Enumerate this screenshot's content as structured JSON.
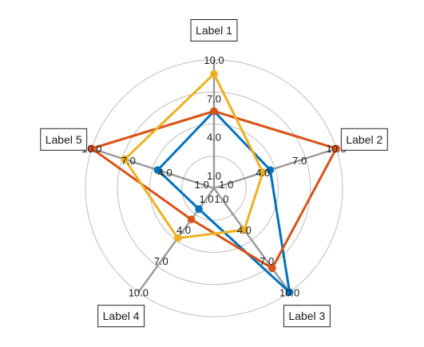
{
  "chart_data": {
    "type": "radar",
    "axes": [
      "Label 1",
      "Label 2",
      "Label 3",
      "Label 4",
      "Label 5"
    ],
    "tick_values": [
      1,
      4,
      7,
      10
    ],
    "tick_labels": [
      "1.0",
      "4.0",
      "7.0",
      "10.0"
    ],
    "range": [
      0,
      10
    ],
    "rings": 4,
    "grid": true,
    "series": [
      {
        "color": "#0072BD",
        "values": [
          6.0,
          4.6,
          10.0,
          2.0,
          4.6
        ]
      },
      {
        "color": "#D95319",
        "values": [
          6.0,
          10.0,
          7.7,
          3.0,
          10.0
        ]
      },
      {
        "color": "#EDB120",
        "values": [
          8.9,
          4.0,
          4.0,
          4.8,
          7.3
        ]
      }
    ],
    "colors": {
      "spoke": "#9a9a9a",
      "ring": "#bdbdbd"
    }
  }
}
